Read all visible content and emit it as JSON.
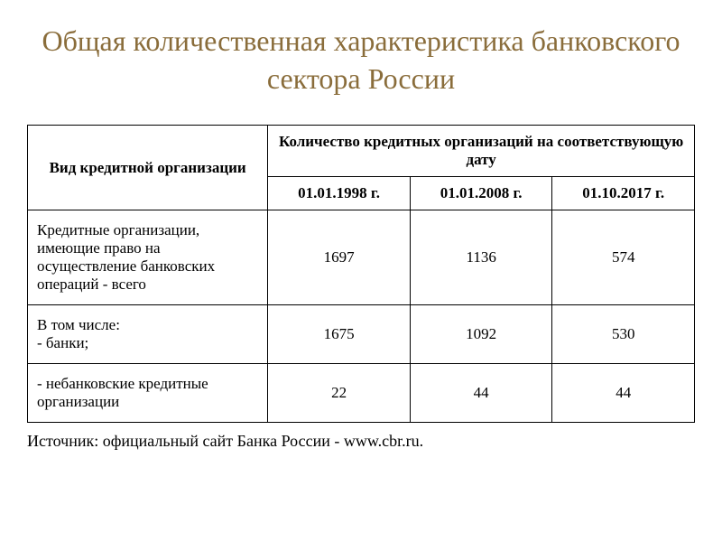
{
  "title": "Общая количественная характеристика банковского сектора России",
  "table": {
    "header": {
      "type_label": "Вид кредитной организации",
      "count_label": "Количество кредитных организаций на соответствующую дату",
      "dates": [
        "01.01.1998 г.",
        "01.01.2008 г.",
        "01.10.2017 г."
      ]
    },
    "rows": [
      {
        "label": "Кредитные организации, имеющие право на осуществление банковских операций - всего",
        "values": [
          "1697",
          "1136",
          "574"
        ]
      },
      {
        "label": "В том числе:\n- банки;",
        "values": [
          "1675",
          "1092",
          "530"
        ]
      },
      {
        "label": "- небанковские кредитные организации",
        "values": [
          "22",
          "44",
          "44"
        ]
      }
    ]
  },
  "source": "Источник: официальный сайт Банка России - www.cbr.ru.",
  "colors": {
    "title_color": "#8a6d3b",
    "text_color": "#000000",
    "border_color": "#000000",
    "background": "#ffffff"
  },
  "typography": {
    "title_fontsize": 32,
    "table_fontsize": 17,
    "source_fontsize": 18,
    "font_family": "Times New Roman"
  }
}
